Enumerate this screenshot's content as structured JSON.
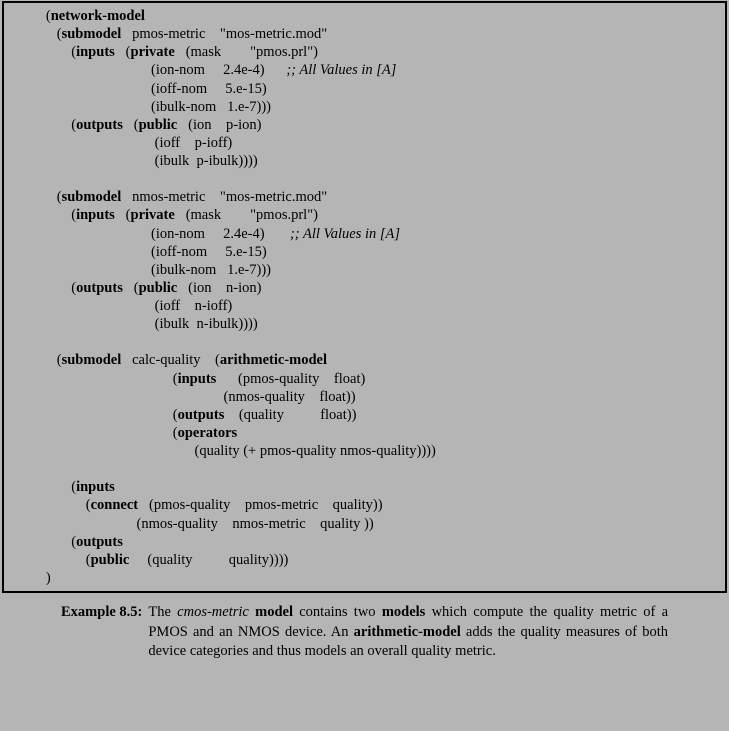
{
  "code": {
    "l01": "network-model",
    "l02_kw": "submodel",
    "l02_a": "pmos-metric",
    "l02_b": "\"mos-metric.mod\"",
    "l03_kw1": "inputs",
    "l03_kw2": "private",
    "l03_a": "(mask",
    "l03_b": "\"pmos.prl\")",
    "l04_a": "(ion-nom",
    "l04_b": "2.4e-4)",
    "l04_c": ";; All Values in [A]",
    "l05_a": "(ioff-nom",
    "l05_b": "5.e-15)",
    "l06_a": "(ibulk-nom",
    "l06_b": "1.e-7)))",
    "l07_kw1": "outputs",
    "l07_kw2": "public",
    "l07_a": "(ion",
    "l07_b": "p-ion)",
    "l08_a": "(ioff",
    "l08_b": "p-ioff)",
    "l09_a": "(ibulk",
    "l09_b": "p-ibulk))))",
    "l10_kw": "submodel",
    "l10_a": "nmos-metric",
    "l10_b": "\"mos-metric.mod\"",
    "l11_kw1": "inputs",
    "l11_kw2": "private",
    "l11_a": "(mask",
    "l11_b": "\"pmos.prl\")",
    "l12_a": "(ion-nom",
    "l12_b": "2.4e-4)",
    "l12_c": ";; All Values in [A]",
    "l13_a": "(ioff-nom",
    "l13_b": "5.e-15)",
    "l14_a": "(ibulk-nom",
    "l14_b": "1.e-7)))",
    "l15_kw1": "outputs",
    "l15_kw2": "public",
    "l15_a": "(ion",
    "l15_b": "n-ion)",
    "l16_a": "(ioff",
    "l16_b": "n-ioff)",
    "l17_a": "(ibulk",
    "l17_b": "n-ibulk))))",
    "l18_kw": "submodel",
    "l18_a": "calc-quality",
    "l18_kw2": "arithmetic-model",
    "l19_kw": "inputs",
    "l19_a": "(pmos-quality",
    "l19_b": "float)",
    "l20_a": "(nmos-quality",
    "l20_b": "float))",
    "l21_kw": "outputs",
    "l21_a": "(quality",
    "l21_b": "float))",
    "l22_kw": "operators",
    "l23_a": "(quality (+ pmos-quality nmos-quality))))",
    "l24_kw": "inputs",
    "l25_kw": "connect",
    "l25_a": "(pmos-quality",
    "l25_b": "pmos-metric",
    "l25_c": "quality))",
    "l26_a": "(nmos-quality",
    "l26_b": "nmos-metric",
    "l26_c": "quality ))",
    "l27_kw": "outputs",
    "l28_kw": "public",
    "l28_a": "(quality",
    "l28_b": "quality))))",
    "l29": ")"
  },
  "caption": {
    "label": "Example 8.5:",
    "p1a": "The ",
    "p1i": "cmos-metric",
    "p1b": " ",
    "p1bold1": "model",
    "p1c": " contains two ",
    "p1bold2": "models",
    "p1d": " which compute the quality metric of a PMOS and an NMOS device.  An ",
    "p1bold3": "arithmetic-model",
    "p1e": " adds the quality measures of both device categories and thus models an overall quality metric."
  }
}
